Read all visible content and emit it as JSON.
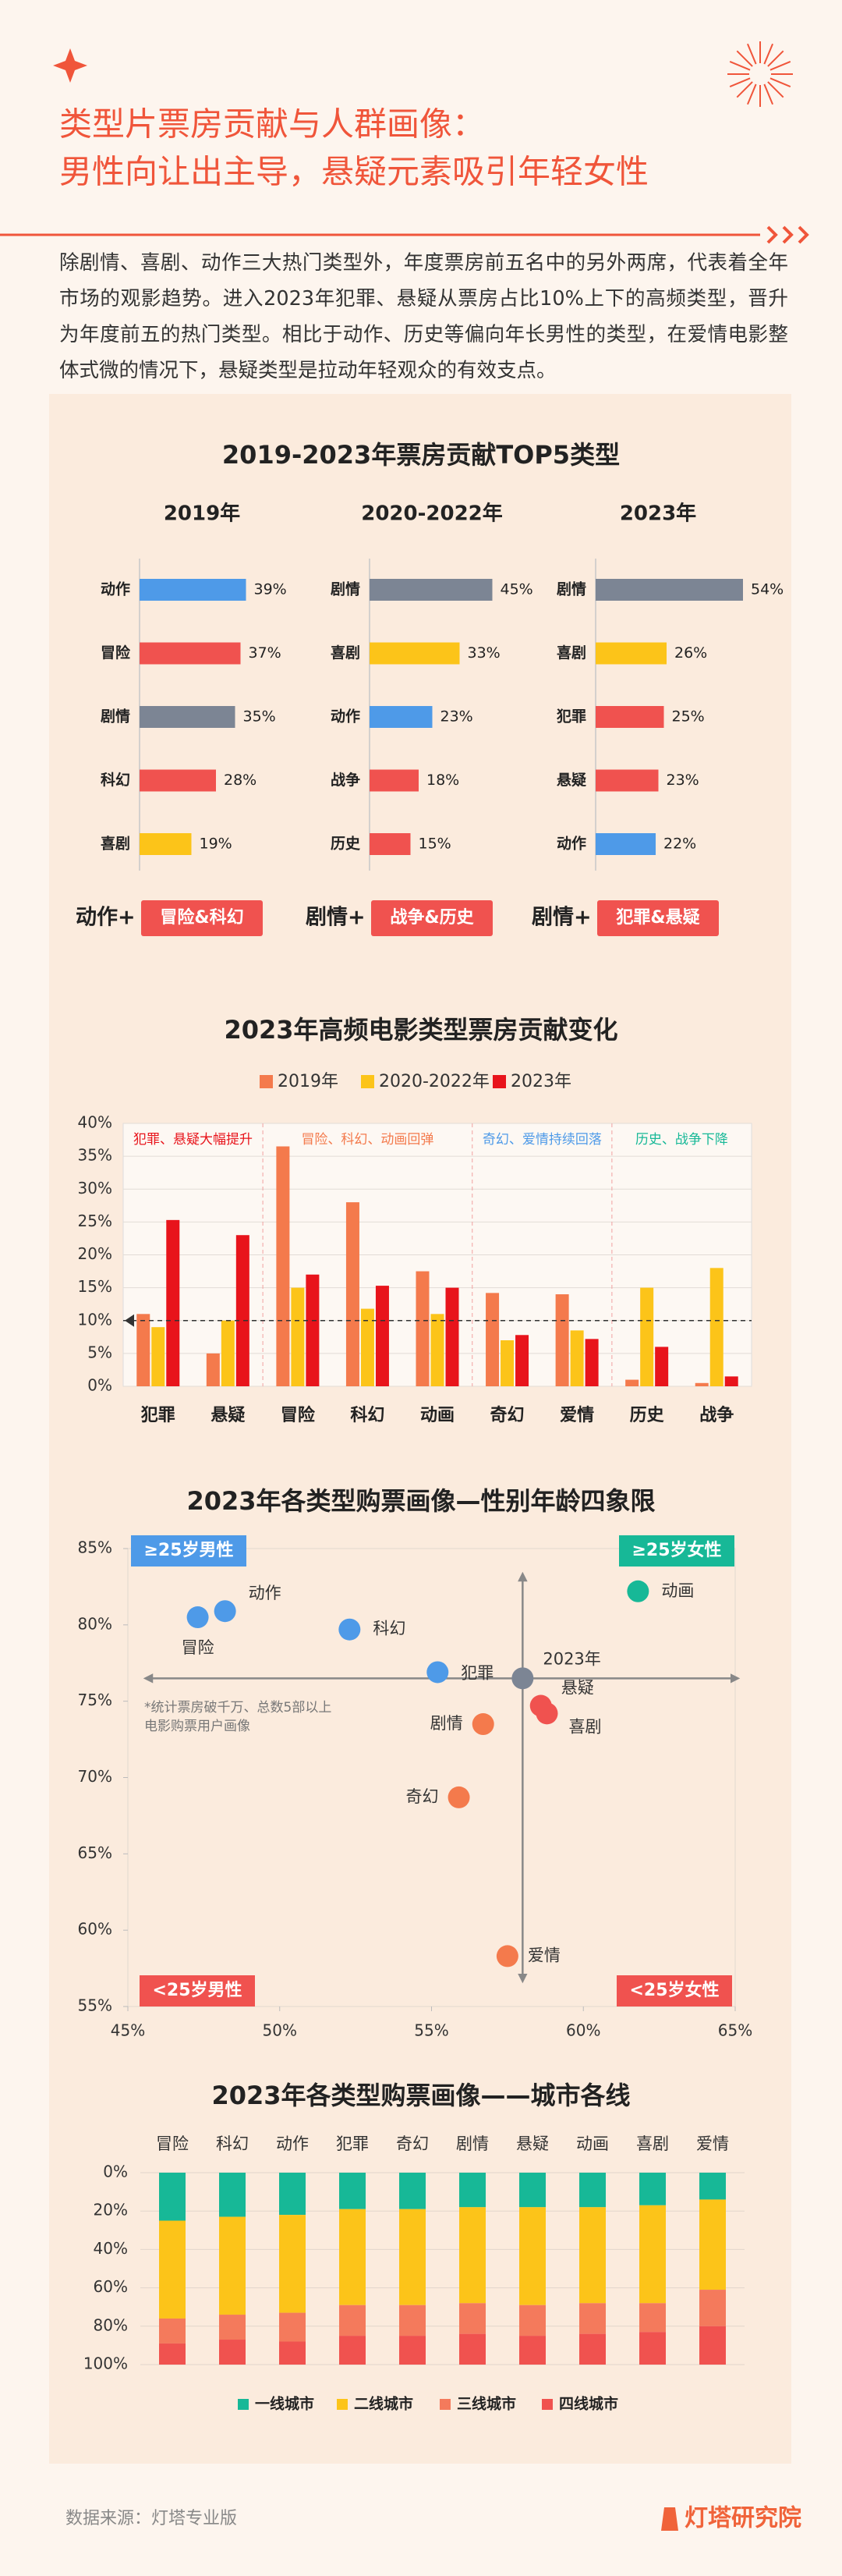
{
  "header": {
    "title_lines": [
      "类型片票房贡献与人群画像：",
      "男性向让出主导，悬疑元素吸引年轻女性"
    ],
    "intro": "除剧情、喜剧、动作三大热门类型外，年度票房前五名中的另外两席，代表着全年市场的观影趋势。进入2023年犯罪、悬疑从票房占比10%上下的高频类型，晋升为年度前五的热门类型。相比于动作、历史等偏向年长男性的类型，在爱情电影整体式微的情况下，悬疑类型是拉动年轻观众的有效支点。"
  },
  "chart_data": [
    {
      "type": "hbar-groups",
      "title": "2019-2023年票房贡献TOP5类型",
      "groups": [
        {
          "title": "2019年",
          "categories": [
            "动作",
            "冒险",
            "剧情",
            "科幻",
            "喜剧"
          ],
          "values": [
            39,
            37,
            35,
            28,
            19
          ],
          "value_labels": [
            "39%",
            "37%",
            "35%",
            "28%",
            "19%"
          ],
          "colors": [
            "#4e9ae8",
            "#f0524f",
            "#7c8594",
            "#f0524f",
            "#fcc419"
          ],
          "summary_lead": "动作+",
          "summary_badge": "冒险&科幻"
        },
        {
          "title": "2020-2022年",
          "categories": [
            "剧情",
            "喜剧",
            "动作",
            "战争",
            "历史"
          ],
          "values": [
            45,
            33,
            23,
            18,
            15
          ],
          "value_labels": [
            "45%",
            "33%",
            "23%",
            "18%",
            "15%"
          ],
          "colors": [
            "#7c8594",
            "#fcc419",
            "#4e9ae8",
            "#f0524f",
            "#f0524f"
          ],
          "summary_lead": "剧情+",
          "summary_badge": "战争&历史"
        },
        {
          "title": "2023年",
          "categories": [
            "剧情",
            "喜剧",
            "犯罪",
            "悬疑",
            "动作"
          ],
          "values": [
            54,
            26,
            25,
            23,
            22
          ],
          "value_labels": [
            "54%",
            "26%",
            "25%",
            "23%",
            "22%"
          ],
          "colors": [
            "#7c8594",
            "#fcc419",
            "#f0524f",
            "#f0524f",
            "#4e9ae8"
          ],
          "summary_lead": "剧情+",
          "summary_badge": "犯罪&悬疑"
        }
      ]
    },
    {
      "type": "grouped-bar",
      "title": "2023年高频电影类型票房贡献变化",
      "categories": [
        "犯罪",
        "悬疑",
        "冒险",
        "科幻",
        "动画",
        "奇幻",
        "爱情",
        "历史",
        "战争"
      ],
      "series": [
        {
          "name": "2019年",
          "color": "#f47a4c",
          "values": [
            11,
            5,
            36.5,
            28,
            17.5,
            14.2,
            14,
            1,
            0.5
          ]
        },
        {
          "name": "2020-2022年",
          "color": "#fcc419",
          "values": [
            9,
            10,
            15,
            11.8,
            11,
            7,
            8.5,
            15,
            18
          ]
        },
        {
          "name": "2023年",
          "color": "#e8141b",
          "values": [
            25.3,
            23,
            17,
            15.3,
            15,
            7.8,
            7.2,
            6,
            1.5
          ]
        }
      ],
      "ylim": [
        0,
        40
      ],
      "yticks": [
        {
          "value": 0,
          "label": "0%"
        },
        {
          "value": 5,
          "label": "5%"
        },
        {
          "value": 10,
          "label": "10%"
        },
        {
          "value": 15,
          "label": "15%"
        },
        {
          "value": 20,
          "label": "20%"
        },
        {
          "value": 25,
          "label": "25%"
        },
        {
          "value": 30,
          "label": "30%"
        },
        {
          "value": 35,
          "label": "35%"
        },
        {
          "value": 40,
          "label": "40%"
        }
      ],
      "grid": true,
      "legend": "top",
      "reference_line": 10,
      "annotations": [
        {
          "text": "犯罪、悬疑大幅提升",
          "color": "#e8141b",
          "span": [
            0,
            1
          ]
        },
        {
          "text": "冒险、科幻、动画回弹",
          "color": "#f47a4c",
          "span": [
            2,
            4
          ]
        },
        {
          "text": "奇幻、爱情持续回落",
          "color": "#4e9ae8",
          "span": [
            5,
            6
          ]
        },
        {
          "text": "历史、战争下降",
          "color": "#17b897",
          "span": [
            7,
            8
          ]
        }
      ]
    },
    {
      "type": "scatter",
      "title": "2023年各类型购票画像—性别年龄四象限",
      "points": [
        {
          "name": "动作",
          "x": 48.2,
          "y": 80.9,
          "color": "#4e9ae8"
        },
        {
          "name": "冒险",
          "x": 47.3,
          "y": 80.5,
          "color": "#4e9ae8"
        },
        {
          "name": "科幻",
          "x": 52.3,
          "y": 79.7,
          "color": "#4e9ae8"
        },
        {
          "name": "犯罪",
          "x": 55.2,
          "y": 76.9,
          "color": "#4e9ae8"
        },
        {
          "name": "2023年",
          "x": 58.0,
          "y": 76.5,
          "color": "#7c8594",
          "crosshair": true
        },
        {
          "name": "悬疑",
          "x": 58.6,
          "y": 74.7,
          "color": "#f0524f"
        },
        {
          "name": "喜剧",
          "x": 58.8,
          "y": 74.2,
          "color": "#f0524f"
        },
        {
          "name": "剧情",
          "x": 56.7,
          "y": 73.5,
          "color": "#f47a4c"
        },
        {
          "name": "奇幻",
          "x": 55.9,
          "y": 68.7,
          "color": "#f47a4c"
        },
        {
          "name": "爱情",
          "x": 57.5,
          "y": 58.3,
          "color": "#f47a4c"
        },
        {
          "name": "动画",
          "x": 61.8,
          "y": 82.2,
          "color": "#17b897"
        }
      ],
      "xlim": [
        45,
        65
      ],
      "xticks": [
        {
          "value": 45,
          "label": "45%"
        },
        {
          "value": 50,
          "label": "50%"
        },
        {
          "value": 55,
          "label": "55%"
        },
        {
          "value": 60,
          "label": "60%"
        },
        {
          "value": 65,
          "label": "65%"
        }
      ],
      "ylim": [
        55,
        85
      ],
      "yticks": [
        {
          "value": 55,
          "label": "55%"
        },
        {
          "value": 60,
          "label": "60%"
        },
        {
          "value": 65,
          "label": "65%"
        },
        {
          "value": 70,
          "label": "70%"
        },
        {
          "value": 75,
          "label": "75%"
        },
        {
          "value": 80,
          "label": "80%"
        },
        {
          "value": 85,
          "label": "85%"
        }
      ],
      "quadrants": [
        {
          "text": "≥25岁男性",
          "color": "#4e9ae8",
          "corner": "top-left"
        },
        {
          "text": "≥25岁女性",
          "color": "#17b897",
          "corner": "top-right"
        },
        {
          "text": "<25岁男性",
          "color": "#f0524f",
          "corner": "bottom-left"
        },
        {
          "text": "<25岁女性",
          "color": "#f0524f",
          "corner": "bottom-right"
        }
      ],
      "note_lines": [
        "*统计票房破千万、总数5部以上",
        "电影购票用户画像"
      ]
    },
    {
      "type": "stacked-bar",
      "title": "2023年各类型购票画像——城市各线",
      "categories": [
        "冒险",
        "科幻",
        "动作",
        "犯罪",
        "奇幻",
        "剧情",
        "悬疑",
        "动画",
        "喜剧",
        "爱情"
      ],
      "series": [
        {
          "name": "一线城市",
          "color": "#17b897",
          "values": [
            25,
            23,
            22,
            19,
            19,
            18,
            18,
            18,
            17,
            14
          ]
        },
        {
          "name": "二线城市",
          "color": "#fcc419",
          "values": [
            51,
            51,
            51,
            50,
            50,
            50,
            51,
            50,
            51,
            47
          ]
        },
        {
          "name": "三线城市",
          "color": "#f47a5c",
          "values": [
            13,
            13,
            15,
            16,
            16,
            16,
            16,
            16,
            15,
            19
          ]
        },
        {
          "name": "四线城市",
          "color": "#f0524f",
          "values": [
            11,
            13,
            12,
            15,
            15,
            16,
            15,
            16,
            17,
            20
          ]
        }
      ],
      "ylim": [
        0,
        100
      ],
      "y_inverted": true,
      "yticks": [
        {
          "value": 0,
          "label": "0%"
        },
        {
          "value": 20,
          "label": "20%"
        },
        {
          "value": 40,
          "label": "40%"
        },
        {
          "value": 60,
          "label": "60%"
        },
        {
          "value": 80,
          "label": "80%"
        },
        {
          "value": 100,
          "label": "100%"
        }
      ],
      "grid": true,
      "legend": "bottom"
    }
  ],
  "footer": {
    "source": "数据来源：灯塔专业版",
    "brand": "灯塔研究院"
  }
}
